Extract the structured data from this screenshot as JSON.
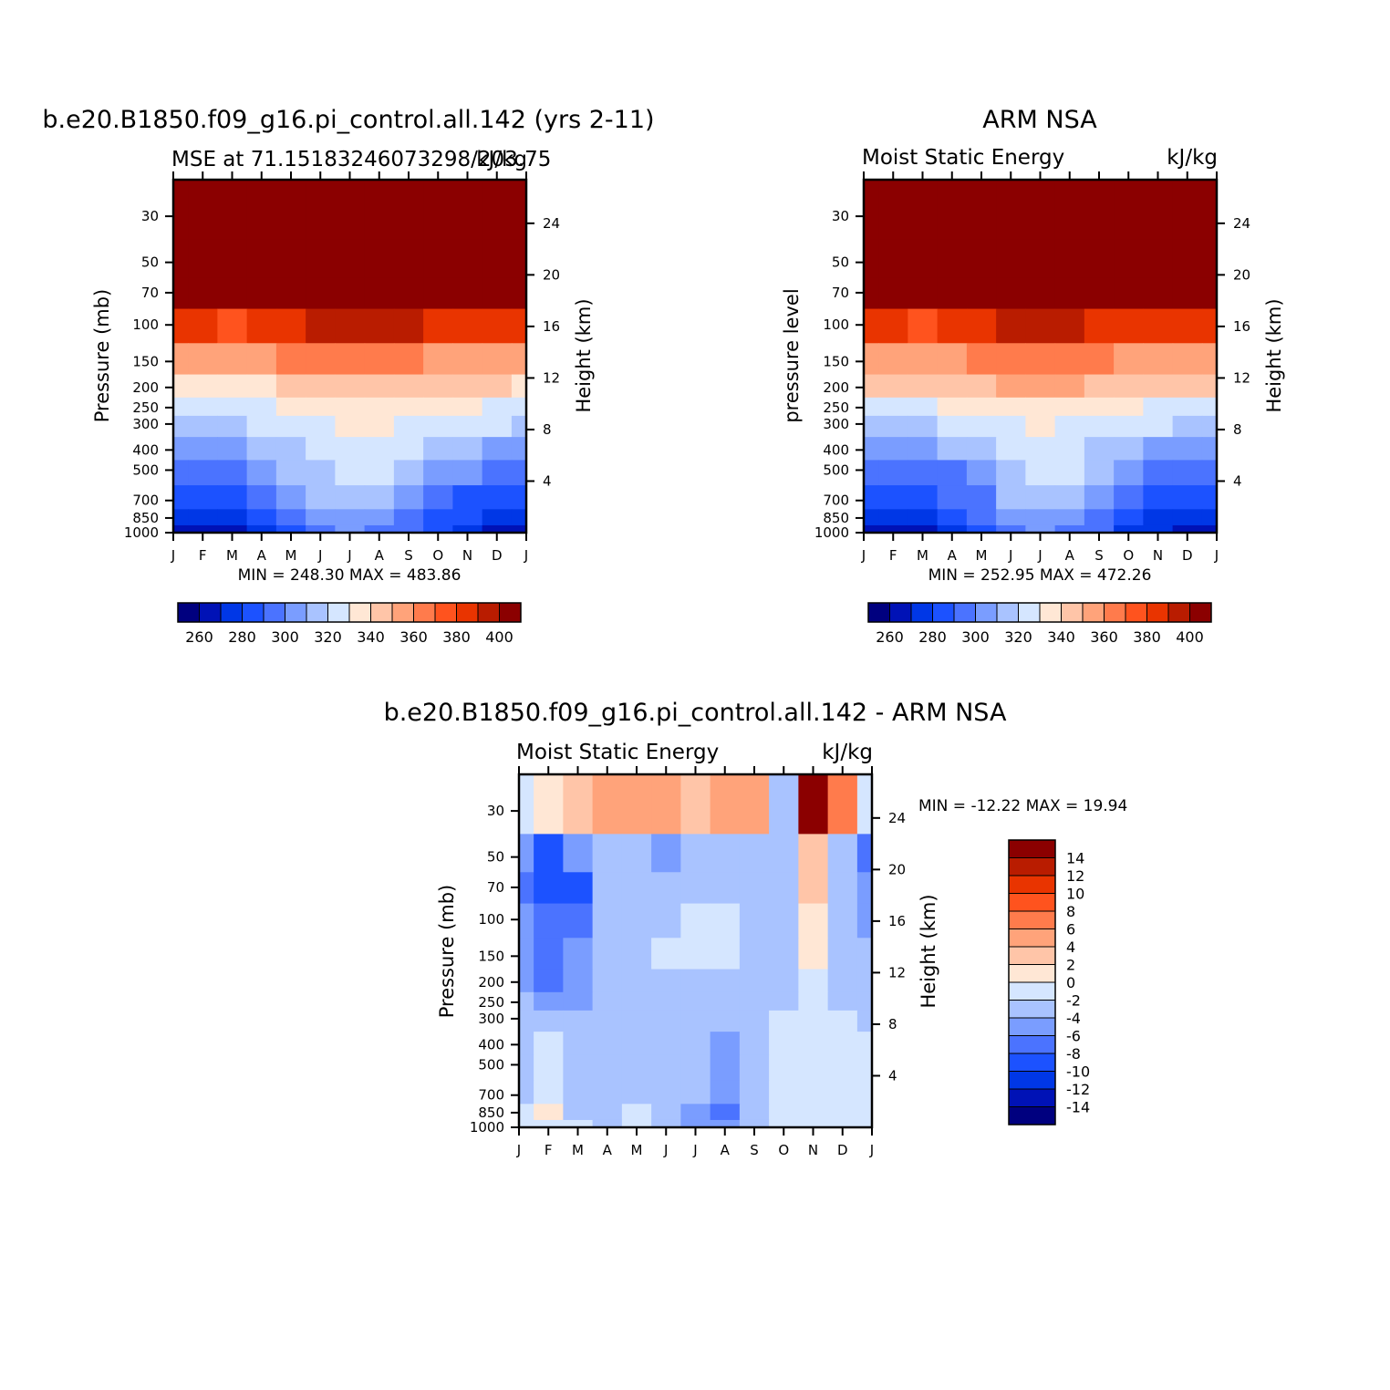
{
  "chart_data": [
    {
      "type": "heatmap",
      "title": "b.e20.B1850.f09_g16.pi_control.all.142 (yrs 2-11)",
      "subtitle_left": "MSE at 71.15183246073298/203.75",
      "subtitle_right": "kJ/kg",
      "ylabel": "Pressure (mb)",
      "ylabel_right": "Height (km)",
      "x_ticks": [
        "J",
        "F",
        "M",
        "A",
        "M",
        "J",
        "J",
        "A",
        "S",
        "O",
        "N",
        "D",
        "J"
      ],
      "y_ticks": [
        "30",
        "50",
        "70",
        "100",
        "150",
        "200",
        "250",
        "300",
        "400",
        "500",
        "700",
        "850",
        "1000"
      ],
      "y_ticks_right": [
        "24",
        "20",
        "16",
        "12",
        "8",
        "4"
      ],
      "minmax": "MIN =  248.30  MAX =  483.86",
      "colorbar_labels": [
        "260",
        "280",
        "300",
        "320",
        "340",
        "360",
        "380",
        "400"
      ],
      "levels": [
        250,
        260,
        270,
        280,
        290,
        300,
        310,
        320,
        330,
        340,
        350,
        360,
        370,
        380,
        390,
        400
      ],
      "pressure_levels": [
        30,
        50,
        70,
        100,
        150,
        200,
        250,
        300,
        400,
        500,
        700,
        850,
        1000
      ],
      "z": [
        [
          420,
          420,
          420,
          420,
          420,
          420,
          420,
          420,
          420,
          420,
          420,
          420,
          420
        ],
        [
          420,
          420,
          420,
          420,
          420,
          420,
          420,
          420,
          420,
          420,
          420,
          420,
          420
        ],
        [
          396,
          395,
          394,
          398,
          402,
          405,
          406,
          405,
          403,
          399,
          398,
          397,
          396
        ],
        [
          372,
          370,
          369,
          373,
          378,
          383,
          385,
          384,
          380,
          375,
          374,
          374,
          372
        ],
        [
          345,
          344,
          343,
          348,
          352,
          356,
          358,
          357,
          354,
          349,
          348,
          347,
          345
        ],
        [
          326,
          326,
          326,
          329,
          333,
          337,
          339,
          338,
          335,
          331,
          331,
          330,
          326
        ],
        [
          316,
          316,
          316,
          318,
          322,
          326,
          328,
          327,
          324,
          320,
          320,
          319,
          316
        ],
        [
          308,
          308,
          309,
          311,
          314,
          318,
          321,
          320,
          316,
          312,
          311,
          310,
          308
        ],
        [
          295,
          295,
          296,
          302,
          308,
          313,
          318,
          316,
          311,
          305,
          302,
          299,
          295
        ],
        [
          285,
          286,
          287,
          290,
          300,
          308,
          312,
          310,
          305,
          298,
          292,
          289,
          285
        ],
        [
          273,
          274,
          274,
          280,
          290,
          300,
          302,
          300,
          295,
          286,
          279,
          276,
          273
        ],
        [
          265,
          265,
          266,
          272,
          282,
          293,
          296,
          294,
          288,
          278,
          270,
          267,
          265
        ],
        [
          255,
          256,
          256,
          262,
          272,
          285,
          290,
          288,
          282,
          270,
          262,
          258,
          255
        ]
      ]
    },
    {
      "type": "heatmap",
      "title": "ARM NSA",
      "subtitle_left": "Moist Static Energy",
      "subtitle_right": "kJ/kg",
      "ylabel": "pressure level",
      "ylabel_right": "Height (km)",
      "x_ticks": [
        "J",
        "F",
        "M",
        "A",
        "M",
        "J",
        "J",
        "A",
        "S",
        "O",
        "N",
        "D",
        "J"
      ],
      "y_ticks": [
        "30",
        "50",
        "70",
        "100",
        "150",
        "200",
        "250",
        "300",
        "400",
        "500",
        "700",
        "850",
        "1000"
      ],
      "y_ticks_right": [
        "24",
        "20",
        "16",
        "12",
        "8",
        "4"
      ],
      "minmax": "MIN =  252.95  MAX =  472.26",
      "colorbar_labels": [
        "260",
        "280",
        "300",
        "320",
        "340",
        "360",
        "380",
        "400"
      ],
      "levels": [
        250,
        260,
        270,
        280,
        290,
        300,
        310,
        320,
        330,
        340,
        350,
        360,
        370,
        380,
        390,
        400
      ],
      "pressure_levels": [
        30,
        50,
        70,
        100,
        150,
        200,
        250,
        300,
        400,
        500,
        700,
        850,
        1000
      ],
      "z": [
        [
          420,
          420,
          420,
          420,
          420,
          420,
          420,
          420,
          420,
          420,
          420,
          420,
          420
        ],
        [
          420,
          420,
          420,
          420,
          420,
          420,
          420,
          420,
          420,
          420,
          420,
          420,
          420
        ],
        [
          394,
          394,
          394,
          397,
          401,
          404,
          405,
          404,
          402,
          399,
          396,
          396,
          394
        ],
        [
          370,
          370,
          369,
          372,
          377,
          382,
          384,
          383,
          379,
          375,
          372,
          371,
          370
        ],
        [
          344,
          344,
          343,
          347,
          351,
          355,
          357,
          356,
          353,
          349,
          346,
          345,
          344
        ],
        [
          330,
          330,
          330,
          333,
          336,
          340,
          342,
          341,
          338,
          334,
          332,
          331,
          330
        ],
        [
          318,
          318,
          318,
          320,
          323,
          326,
          328,
          327,
          324,
          321,
          319,
          318,
          318
        ],
        [
          309,
          309,
          309,
          311,
          314,
          318,
          320,
          319,
          316,
          312,
          310,
          309,
          309
        ],
        [
          294,
          294,
          295,
          300,
          307,
          315,
          318,
          316,
          309,
          302,
          297,
          295,
          294
        ],
        [
          283,
          284,
          284,
          289,
          297,
          309,
          312,
          311,
          303,
          293,
          286,
          284,
          283
        ],
        [
          273,
          274,
          274,
          280,
          289,
          300,
          302,
          301,
          294,
          284,
          277,
          275,
          273
        ],
        [
          265,
          265,
          266,
          272,
          282,
          292,
          295,
          293,
          286,
          276,
          269,
          267,
          265
        ],
        [
          255,
          256,
          256,
          262,
          272,
          285,
          290,
          288,
          282,
          268,
          262,
          258,
          255
        ]
      ]
    },
    {
      "type": "heatmap",
      "title": "b.e20.B1850.f09_g16.pi_control.all.142 - ARM NSA",
      "subtitle_left": "Moist Static Energy",
      "subtitle_right": "kJ/kg",
      "ylabel": "Pressure (mb)",
      "ylabel_right": "Height (km)",
      "x_ticks": [
        "J",
        "F",
        "M",
        "A",
        "M",
        "J",
        "J",
        "A",
        "S",
        "O",
        "N",
        "D",
        "J"
      ],
      "y_ticks": [
        "30",
        "50",
        "70",
        "100",
        "150",
        "200",
        "250",
        "300",
        "400",
        "500",
        "700",
        "850",
        "1000"
      ],
      "y_ticks_right": [
        "24",
        "20",
        "16",
        "12",
        "8",
        "4"
      ],
      "minmax": "MIN = -12.22  MAX =   19.94",
      "colorbar_labels": [
        "14",
        "12",
        "10",
        "8",
        "6",
        "4",
        "2",
        "0",
        "-2",
        "-4",
        "-6",
        "-8",
        "-10",
        "-12",
        "-14"
      ],
      "levels": [
        -14,
        -12,
        -10,
        -8,
        -6,
        -4,
        -2,
        0,
        2,
        4,
        6,
        8,
        10,
        12,
        14
      ],
      "pressure_levels": [
        30,
        50,
        70,
        100,
        150,
        200,
        250,
        300,
        400,
        500,
        700,
        850,
        1000
      ],
      "z": [
        [
          -1,
          1,
          3,
          4,
          5,
          5,
          3,
          5,
          5,
          -3,
          16,
          6,
          -2
        ],
        [
          -5,
          -9,
          -6,
          -3,
          -3,
          -5,
          -3,
          -3,
          -3,
          -4,
          2,
          -3,
          -7
        ],
        [
          -8,
          -10,
          -9,
          -4,
          -4,
          -4,
          -4,
          -4,
          -4,
          -4,
          2,
          -3,
          -6
        ],
        [
          -6,
          -8,
          -7,
          -3,
          -3,
          -3,
          -2,
          -1,
          -3,
          -3,
          1,
          -3,
          -5
        ],
        [
          -5,
          -7,
          -6,
          -3,
          -3,
          -2,
          -1,
          -2,
          -3,
          -3,
          1,
          -3,
          -4
        ],
        [
          -5,
          -7,
          -6,
          -4,
          -3,
          -3,
          -3,
          -3,
          -4,
          -3,
          -1,
          -3,
          -4
        ],
        [
          -4,
          -5,
          -5,
          -4,
          -3,
          -3,
          -3,
          -3,
          -4,
          -3,
          -2,
          -3,
          -3
        ],
        [
          -4,
          -3,
          -4,
          -4,
          -3,
          -3,
          -3,
          -4,
          -4,
          -2,
          -2,
          -2,
          -3
        ],
        [
          -3,
          -2,
          -3,
          -3,
          -3,
          -3,
          -4,
          -5,
          -4,
          -2,
          -2,
          -2,
          -2
        ],
        [
          -3,
          -2,
          -3,
          -3,
          -3,
          -3,
          -4,
          -5,
          -4,
          -2,
          -2,
          -1,
          -2
        ],
        [
          -3,
          -2,
          -3,
          -3,
          -3,
          -3,
          -4,
          -5,
          -4,
          -2,
          -2,
          -1,
          -2
        ],
        [
          -2,
          0,
          -3,
          -3,
          -2,
          -3,
          -5,
          -7,
          -4,
          -2,
          -2,
          -2,
          -2
        ],
        [
          -2,
          -1,
          -2,
          -3,
          -2,
          -3,
          -5,
          -6,
          -3,
          -2,
          -2,
          -2,
          -2
        ]
      ]
    }
  ],
  "colors": {
    "palette": [
      "#00007f",
      "#0012b6",
      "#0037e6",
      "#1c52ff",
      "#4b73ff",
      "#7a9dff",
      "#a9c3ff",
      "#d5e6ff",
      "#ffe7d5",
      "#ffc5a8",
      "#ffa37a",
      "#ff7b4c",
      "#ff531e",
      "#e93400",
      "#b91c00",
      "#8b0000"
    ]
  }
}
